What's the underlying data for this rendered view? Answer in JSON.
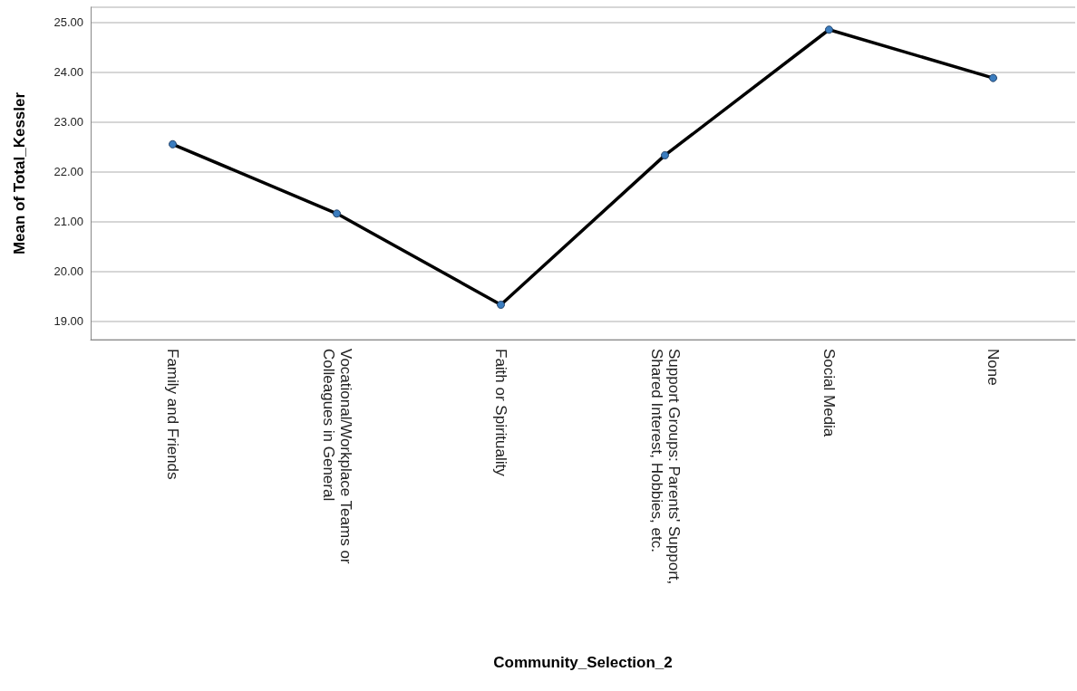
{
  "chart_data": {
    "type": "line",
    "xlabel": "Community_Selection_2",
    "ylabel": "Mean of Total_Kessler",
    "categories": [
      "Family and Friends",
      "Vocational/Workplace Teams or Colleagues in General",
      "Faith or Spirituality",
      "Support Groups: Parents' Support, Shared Interest, Hobbies, etc.",
      "Social Media",
      "None"
    ],
    "series": [
      {
        "color": "#000000",
        "values": [
          22.55,
          21.16,
          19.33,
          22.33,
          24.85,
          23.88
        ]
      }
    ],
    "ylim": [
      18.63,
      25.3
    ],
    "yticks": [
      {
        "value": 19,
        "label": "19.00"
      },
      {
        "value": 20,
        "label": "20.00"
      },
      {
        "value": 21,
        "label": "21.00"
      },
      {
        "value": 22,
        "label": "22.00"
      },
      {
        "value": 23,
        "label": "23.00"
      },
      {
        "value": 24,
        "label": "24.00"
      },
      {
        "value": 25,
        "label": "25.00"
      }
    ],
    "grid": "y",
    "marker": "circle",
    "line_style": "solid"
  }
}
